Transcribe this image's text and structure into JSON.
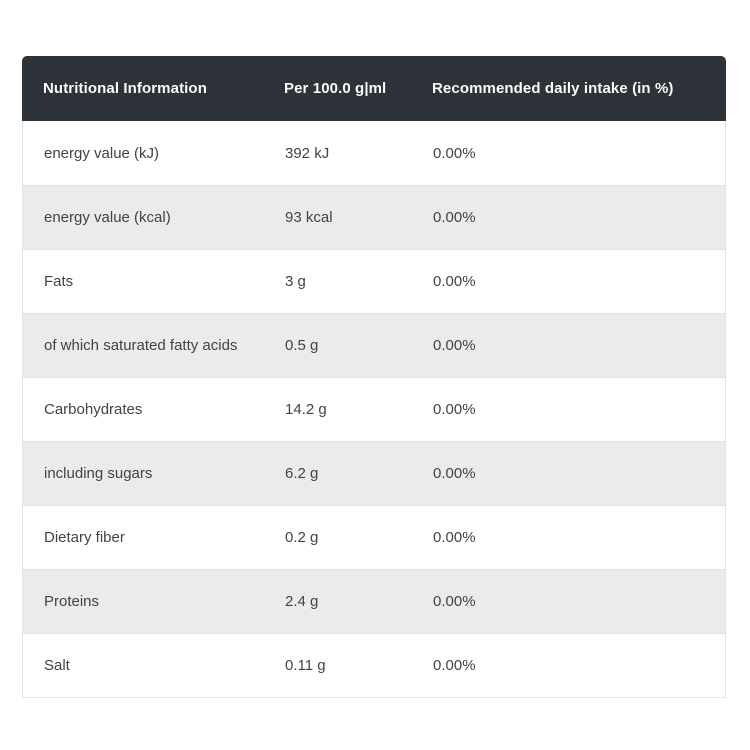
{
  "table": {
    "headers": {
      "nutrient": "Nutritional Information",
      "per_amount": "Per 100.0 g|ml",
      "rdi": "Recommended daily intake (in %)"
    },
    "rows": [
      {
        "label": "energy value (kJ)",
        "amount": "392 kJ",
        "rdi": "0.00%"
      },
      {
        "label": "energy value (kcal)",
        "amount": "93 kcal",
        "rdi": "0.00%"
      },
      {
        "label": "Fats",
        "amount": "3 g",
        "rdi": "0.00%"
      },
      {
        "label": "of which saturated fatty acids",
        "amount": "0.5 g",
        "rdi": "0.00%"
      },
      {
        "label": "Carbohydrates",
        "amount": "14.2 g",
        "rdi": "0.00%"
      },
      {
        "label": "including sugars",
        "amount": "6.2 g",
        "rdi": "0.00%"
      },
      {
        "label": "Dietary fiber",
        "amount": "0.2 g",
        "rdi": "0.00%"
      },
      {
        "label": "Proteins",
        "amount": "2.4 g",
        "rdi": "0.00%"
      },
      {
        "label": "Salt",
        "amount": "0.11 g",
        "rdi": "0.00%"
      }
    ]
  },
  "colors": {
    "header_bg": "#2d3338",
    "header_text": "#fbfbfb",
    "row_bg": "#ffffff",
    "row_alt_bg": "#ebebeb",
    "row_text": "#454241",
    "border": "#e2e5e7"
  }
}
